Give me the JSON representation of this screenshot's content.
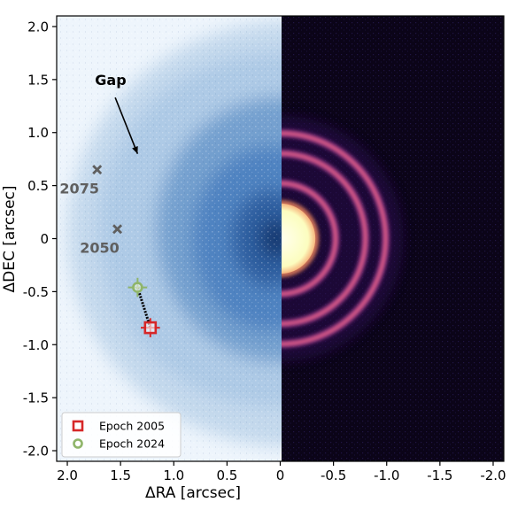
{
  "chart_data": {
    "type": "scatter",
    "title": "",
    "xlabel": "ΔRA [arcsec]",
    "ylabel": "ΔDEC [arcsec]",
    "xlim": [
      2.1,
      -2.1
    ],
    "ylim": [
      -2.1,
      2.1
    ],
    "x_ticks": [
      {
        "value": 2.0,
        "label": "2.0"
      },
      {
        "value": 1.5,
        "label": "1.5"
      },
      {
        "value": 1.0,
        "label": "1.0"
      },
      {
        "value": 0.5,
        "label": "0.5"
      },
      {
        "value": 0.0,
        "label": "0"
      },
      {
        "value": -0.5,
        "label": "-0.5"
      },
      {
        "value": -1.0,
        "label": "-1.0"
      },
      {
        "value": -1.5,
        "label": "-1.5"
      },
      {
        "value": -2.0,
        "label": "-2.0"
      }
    ],
    "y_ticks": [
      {
        "value": 2.0,
        "label": "2.0"
      },
      {
        "value": 1.5,
        "label": "1.5"
      },
      {
        "value": 1.0,
        "label": "1.0"
      },
      {
        "value": 0.5,
        "label": "0.5"
      },
      {
        "value": 0.0,
        "label": "0"
      },
      {
        "value": -0.5,
        "label": "-0.5"
      },
      {
        "value": -1.0,
        "label": "-1.0"
      },
      {
        "value": -1.5,
        "label": "-1.5"
      },
      {
        "value": -2.0,
        "label": "-2.0"
      }
    ],
    "grid": false,
    "legend_position": "bottom-left",
    "series": [
      {
        "name": "Epoch 2005",
        "marker": "square",
        "color": "#d62728",
        "x": [
          1.22
        ],
        "y": [
          -0.84
        ],
        "xerr": [
          0.09
        ],
        "yerr": [
          0.09
        ]
      },
      {
        "name": "Epoch 2024",
        "marker": "circle",
        "color": "#8fb56a",
        "x": [
          1.34
        ],
        "y": [
          -0.46
        ],
        "xerr": [
          0.09
        ],
        "yerr": [
          0.09
        ]
      }
    ],
    "projection_points": [
      {
        "label": "2050",
        "x": 1.53,
        "y": 0.09,
        "color": "#5f5f5f"
      },
      {
        "label": "2075",
        "x": 1.72,
        "y": 0.65,
        "color": "#5f5f5f"
      }
    ],
    "annotations": [
      {
        "text": "Gap",
        "text_x": 1.74,
        "text_y": 1.45,
        "arrow_from_x": 1.55,
        "arrow_from_y": 1.33,
        "arrow_to_x": 1.34,
        "arrow_to_y": 0.8
      }
    ],
    "image_panels": [
      {
        "side": "left",
        "colormap": "Blues",
        "description_hidden": true
      },
      {
        "side": "right",
        "colormap": "magma",
        "rings_radius_arcsec": [
          0.52,
          0.8,
          0.99
        ],
        "core_radius_arcsec": 0.33
      }
    ],
    "colors": {
      "left_background": "#eef5fc",
      "disk_light": "#bcd4ea",
      "disk_mid": "#6f9ccd",
      "disk_dark": "#2b5c9e",
      "right_background": "#0b0418",
      "ring_color": "#e8618c",
      "core_color": "#fcfdbf",
      "track_color": "#000000"
    }
  }
}
